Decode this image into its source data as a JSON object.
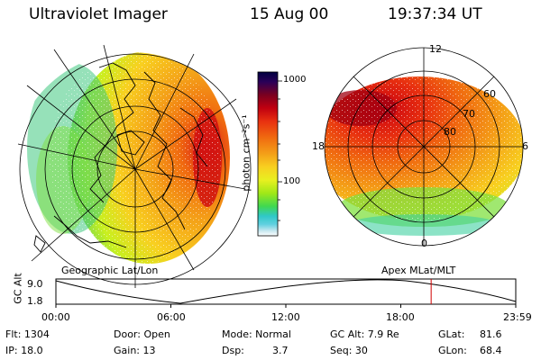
{
  "header": {
    "instrument": "Ultraviolet Imager",
    "date": "15 Aug 00",
    "time": "19:37:34 UT"
  },
  "left_map": {
    "caption": "Geographic Lat/Lon"
  },
  "right_map": {
    "caption": "Apex MLat/MLT",
    "mlt_labels": [
      "12",
      "18",
      "6",
      "0"
    ],
    "lat_labels": [
      "60",
      "70",
      "80"
    ]
  },
  "colorbar": {
    "unit_label": "photon cm⁻²s⁻¹",
    "ticks": [
      "1000",
      "100"
    ],
    "colors": [
      "#000040",
      "#2a0058",
      "#7a0020",
      "#c00010",
      "#e83010",
      "#f06a10",
      "#f4a018",
      "#f8d020",
      "#e8f020",
      "#a0e818",
      "#40d850",
      "#30c8c8",
      "#60d0e0",
      "#c8e8f0",
      "#ffffff"
    ]
  },
  "altitude_plot": {
    "axis_label": "GC Alt",
    "y_ticks": [
      "9.0",
      "1.8"
    ],
    "x_ticks": [
      "00:00",
      "06:00",
      "12:00",
      "18:00",
      "23:59"
    ],
    "current_time_fraction": 0.816,
    "marker_color": "#d00000"
  },
  "status": {
    "flt": "Flt: 1304",
    "ip": "IP: 18.0",
    "door": "Door: Open",
    "gain": "Gain: 13",
    "mode": "Mode: Normal",
    "dsp_label": "Dsp:",
    "dsp_value": "3.7",
    "gcalt": "GC Alt: 7.9 Re",
    "seq": "Seq: 30",
    "glat_label": "GLat:",
    "glat_value": "81.6",
    "glon_label": "GLon:",
    "glon_value": "68.4"
  }
}
